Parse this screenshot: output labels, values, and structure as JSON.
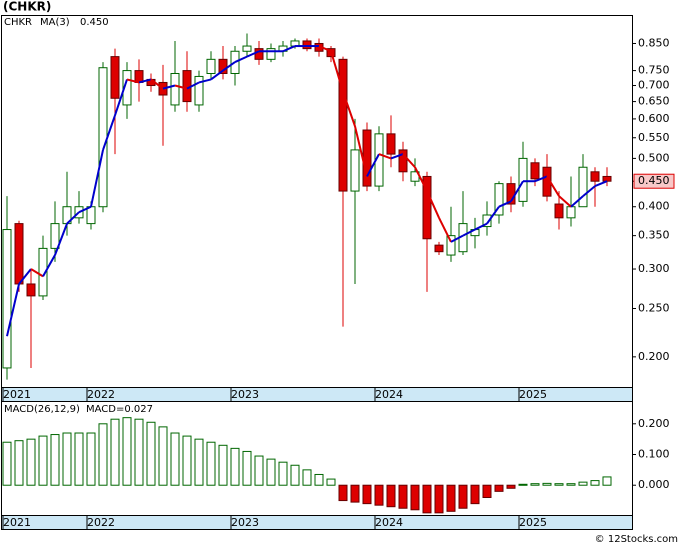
{
  "title": "(CHKR)",
  "footer": "© 12Stocks.com",
  "chart_data": [
    {
      "type": "candlestick",
      "log_scale": true,
      "legend": [
        {
          "name": "CHKR",
          "color": "#009900"
        },
        {
          "name": "MA(3)",
          "value": "0.450",
          "color": "#0000cc"
        }
      ],
      "categories": [
        "2021",
        null,
        null,
        null,
        null,
        null,
        null,
        "2022",
        null,
        null,
        null,
        null,
        null,
        null,
        null,
        null,
        null,
        null,
        null,
        "2023",
        null,
        null,
        null,
        null,
        null,
        null,
        null,
        null,
        null,
        null,
        null,
        "2024",
        null,
        null,
        null,
        null,
        null,
        null,
        null,
        null,
        null,
        null,
        null,
        "2025",
        null,
        null,
        null,
        null,
        null,
        null,
        null
      ],
      "open": [
        0.19,
        0.37,
        0.28,
        0.265,
        0.33,
        0.37,
        0.38,
        0.37,
        0.4,
        0.8,
        0.64,
        0.75,
        0.72,
        0.71,
        0.64,
        0.75,
        0.64,
        0.74,
        0.79,
        0.74,
        0.82,
        0.83,
        0.79,
        0.82,
        0.84,
        0.86,
        0.85,
        0.83,
        0.79,
        0.43,
        0.57,
        0.44,
        0.56,
        0.52,
        0.45,
        0.46,
        0.335,
        0.32,
        0.325,
        0.35,
        0.365,
        0.385,
        0.445,
        0.41,
        0.49,
        0.48,
        0.405,
        0.38,
        0.4,
        0.47,
        0.46
      ],
      "high": [
        0.42,
        0.375,
        0.3,
        0.35,
        0.41,
        0.47,
        0.43,
        0.41,
        0.78,
        0.83,
        0.78,
        0.79,
        0.74,
        0.77,
        0.86,
        0.82,
        0.75,
        0.82,
        0.84,
        0.84,
        0.89,
        0.86,
        0.85,
        0.86,
        0.87,
        0.87,
        0.87,
        0.84,
        0.8,
        0.6,
        0.59,
        0.58,
        0.61,
        0.54,
        0.5,
        0.47,
        0.34,
        0.4,
        0.43,
        0.38,
        0.41,
        0.45,
        0.46,
        0.54,
        0.5,
        0.51,
        0.43,
        0.46,
        0.51,
        0.48,
        0.48
      ],
      "low": [
        0.18,
        0.27,
        0.19,
        0.26,
        0.31,
        0.35,
        0.37,
        0.36,
        0.39,
        0.51,
        0.6,
        0.65,
        0.68,
        0.53,
        0.62,
        0.62,
        0.62,
        0.72,
        0.72,
        0.7,
        0.8,
        0.77,
        0.78,
        0.8,
        0.83,
        0.82,
        0.8,
        0.78,
        0.23,
        0.28,
        0.43,
        0.43,
        0.48,
        0.45,
        0.44,
        0.27,
        0.32,
        0.31,
        0.32,
        0.33,
        0.35,
        0.37,
        0.39,
        0.4,
        0.44,
        0.41,
        0.36,
        0.365,
        0.4,
        0.4,
        0.44
      ],
      "close": [
        0.36,
        0.28,
        0.265,
        0.33,
        0.37,
        0.4,
        0.4,
        0.4,
        0.76,
        0.66,
        0.75,
        0.71,
        0.7,
        0.67,
        0.74,
        0.65,
        0.73,
        0.79,
        0.74,
        0.82,
        0.84,
        0.79,
        0.83,
        0.84,
        0.86,
        0.83,
        0.82,
        0.8,
        0.43,
        0.52,
        0.44,
        0.56,
        0.51,
        0.47,
        0.47,
        0.345,
        0.325,
        0.35,
        0.37,
        0.36,
        0.385,
        0.445,
        0.405,
        0.5,
        0.455,
        0.42,
        0.38,
        0.4,
        0.48,
        0.45,
        0.45
      ],
      "ma": {
        "name": "MA(3)",
        "color_up": "#0000cc",
        "color_down": "#dd0000",
        "values": [
          0.22,
          0.28,
          0.3,
          0.29,
          0.32,
          0.37,
          0.39,
          0.4,
          0.52,
          0.61,
          0.72,
          0.71,
          0.72,
          0.69,
          0.7,
          0.69,
          0.71,
          0.72,
          0.75,
          0.78,
          0.8,
          0.82,
          0.82,
          0.82,
          0.84,
          0.84,
          0.84,
          0.82,
          0.68,
          0.58,
          0.46,
          0.51,
          0.5,
          0.51,
          0.48,
          0.43,
          0.38,
          0.34,
          0.35,
          0.36,
          0.37,
          0.4,
          0.41,
          0.45,
          0.45,
          0.46,
          0.42,
          0.4,
          0.42,
          0.44,
          0.45
        ]
      },
      "up_color": "#006600",
      "down_color": "#dd0000",
      "last_price": {
        "value": 0.45,
        "label": "0.450"
      },
      "ylim": [
        0.174,
        0.965
      ],
      "yticks": [
        {
          "value": 0.85,
          "label": "0.850"
        },
        {
          "value": 0.75,
          "label": "0.750"
        },
        {
          "value": 0.7,
          "label": "0.700"
        },
        {
          "value": 0.65,
          "label": "0.650"
        },
        {
          "value": 0.6,
          "label": "0.600"
        },
        {
          "value": 0.55,
          "label": "0.550"
        },
        {
          "value": 0.5,
          "label": "0.500"
        },
        {
          "value": 0.45,
          "label": "0.450"
        },
        {
          "value": 0.4,
          "label": "0.400"
        },
        {
          "value": 0.35,
          "label": "0.350"
        },
        {
          "value": 0.3,
          "label": "0.300"
        },
        {
          "value": 0.25,
          "label": "0.250"
        },
        {
          "value": 0.2,
          "label": "0.200"
        }
      ]
    },
    {
      "type": "histogram_macd",
      "legend": [
        {
          "name": "MACD(26,12,9)"
        },
        {
          "name": "MACD=0.027"
        }
      ],
      "categories": [
        "2021",
        null,
        null,
        null,
        null,
        null,
        null,
        "2022",
        null,
        null,
        null,
        null,
        null,
        null,
        null,
        null,
        null,
        null,
        null,
        "2023",
        null,
        null,
        null,
        null,
        null,
        null,
        null,
        null,
        null,
        null,
        null,
        "2024",
        null,
        null,
        null,
        null,
        null,
        null,
        null,
        null,
        null,
        null,
        null,
        "2025",
        null,
        null,
        null,
        null,
        null,
        null,
        null
      ],
      "values": [
        0.14,
        0.145,
        0.15,
        0.16,
        0.165,
        0.17,
        0.17,
        0.17,
        0.2,
        0.215,
        0.22,
        0.215,
        0.205,
        0.19,
        0.17,
        0.16,
        0.15,
        0.14,
        0.13,
        0.12,
        0.11,
        0.095,
        0.085,
        0.075,
        0.065,
        0.05,
        0.035,
        0.02,
        -0.05,
        -0.055,
        -0.06,
        -0.065,
        -0.07,
        -0.075,
        -0.08,
        -0.09,
        -0.09,
        -0.085,
        -0.075,
        -0.06,
        -0.04,
        -0.02,
        -0.01,
        0.003,
        0.005,
        0.006,
        0.005,
        0.005,
        0.01,
        0.015,
        0.027
      ],
      "pos_color": "#006600",
      "neg_color": "#dd0000",
      "ylim": [
        -0.097,
        0.271
      ],
      "yticks": [
        {
          "value": 0.2,
          "label": "0.200"
        },
        {
          "value": 0.1,
          "label": "0.100"
        },
        {
          "value": 0,
          "label": "0.000"
        }
      ]
    }
  ]
}
